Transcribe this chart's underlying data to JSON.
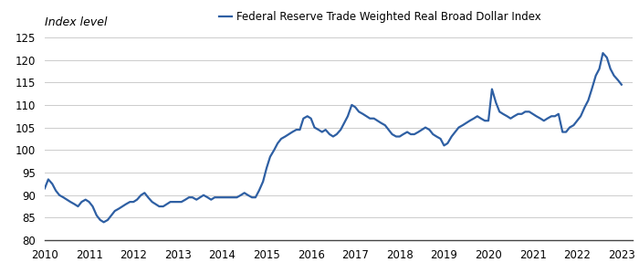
{
  "title": "Federal Reserve Trade Weighted Real Broad Dollar Index",
  "ylabel": "Index level",
  "line_color": "#2e5fa3",
  "line_width": 1.6,
  "background_color": "#ffffff",
  "ylim": [
    80,
    126
  ],
  "yticks": [
    80,
    85,
    90,
    95,
    100,
    105,
    110,
    115,
    120,
    125
  ],
  "xtick_labels": [
    "2010",
    "2011",
    "2012",
    "2013",
    "2014",
    "2015",
    "2016",
    "2017",
    "2018",
    "2019",
    "2020",
    "2021",
    "2022",
    "2023"
  ],
  "data": {
    "dates": [
      2010.0,
      2010.08,
      2010.17,
      2010.25,
      2010.33,
      2010.42,
      2010.5,
      2010.58,
      2010.67,
      2010.75,
      2010.83,
      2010.92,
      2011.0,
      2011.08,
      2011.17,
      2011.25,
      2011.33,
      2011.42,
      2011.5,
      2011.58,
      2011.67,
      2011.75,
      2011.83,
      2011.92,
      2012.0,
      2012.08,
      2012.17,
      2012.25,
      2012.33,
      2012.42,
      2012.5,
      2012.58,
      2012.67,
      2012.75,
      2012.83,
      2012.92,
      2013.0,
      2013.08,
      2013.17,
      2013.25,
      2013.33,
      2013.42,
      2013.5,
      2013.58,
      2013.67,
      2013.75,
      2013.83,
      2013.92,
      2014.0,
      2014.08,
      2014.17,
      2014.25,
      2014.33,
      2014.42,
      2014.5,
      2014.58,
      2014.67,
      2014.75,
      2014.83,
      2014.92,
      2015.0,
      2015.08,
      2015.17,
      2015.25,
      2015.33,
      2015.42,
      2015.5,
      2015.58,
      2015.67,
      2015.75,
      2015.83,
      2015.92,
      2016.0,
      2016.08,
      2016.17,
      2016.25,
      2016.33,
      2016.42,
      2016.5,
      2016.58,
      2016.67,
      2016.75,
      2016.83,
      2016.92,
      2017.0,
      2017.08,
      2017.17,
      2017.25,
      2017.33,
      2017.42,
      2017.5,
      2017.58,
      2017.67,
      2017.75,
      2017.83,
      2017.92,
      2018.0,
      2018.08,
      2018.17,
      2018.25,
      2018.33,
      2018.42,
      2018.5,
      2018.58,
      2018.67,
      2018.75,
      2018.83,
      2018.92,
      2019.0,
      2019.08,
      2019.17,
      2019.25,
      2019.33,
      2019.42,
      2019.5,
      2019.58,
      2019.67,
      2019.75,
      2019.83,
      2019.92,
      2020.0,
      2020.08,
      2020.17,
      2020.25,
      2020.33,
      2020.42,
      2020.5,
      2020.58,
      2020.67,
      2020.75,
      2020.83,
      2020.92,
      2021.0,
      2021.08,
      2021.17,
      2021.25,
      2021.33,
      2021.42,
      2021.5,
      2021.58,
      2021.67,
      2021.75,
      2021.83,
      2021.92,
      2022.0,
      2022.08,
      2022.17,
      2022.25,
      2022.33,
      2022.42,
      2022.5,
      2022.58,
      2022.67,
      2022.75,
      2022.83,
      2022.92,
      2023.0
    ],
    "values": [
      91.5,
      93.5,
      92.5,
      91.0,
      90.0,
      89.5,
      89.0,
      88.5,
      88.0,
      87.5,
      88.5,
      89.0,
      88.5,
      87.5,
      85.5,
      84.5,
      84.0,
      84.5,
      85.5,
      86.5,
      87.0,
      87.5,
      88.0,
      88.5,
      88.5,
      89.0,
      90.0,
      90.5,
      89.5,
      88.5,
      88.0,
      87.5,
      87.5,
      88.0,
      88.5,
      88.5,
      88.5,
      88.5,
      89.0,
      89.5,
      89.5,
      89.0,
      89.5,
      90.0,
      89.5,
      89.0,
      89.5,
      89.5,
      89.5,
      89.5,
      89.5,
      89.5,
      89.5,
      90.0,
      90.5,
      90.0,
      89.5,
      89.5,
      91.0,
      93.0,
      96.0,
      98.5,
      100.0,
      101.5,
      102.5,
      103.0,
      103.5,
      104.0,
      104.5,
      104.5,
      107.0,
      107.5,
      107.0,
      105.0,
      104.5,
      104.0,
      104.5,
      103.5,
      103.0,
      103.5,
      104.5,
      106.0,
      107.5,
      110.0,
      109.5,
      108.5,
      108.0,
      107.5,
      107.0,
      107.0,
      106.5,
      106.0,
      105.5,
      104.5,
      103.5,
      103.0,
      103.0,
      103.5,
      104.0,
      103.5,
      103.5,
      104.0,
      104.5,
      105.0,
      104.5,
      103.5,
      103.0,
      102.5,
      101.0,
      101.5,
      103.0,
      104.0,
      105.0,
      105.5,
      106.0,
      106.5,
      107.0,
      107.5,
      107.0,
      106.5,
      106.5,
      113.5,
      110.5,
      108.5,
      108.0,
      107.5,
      107.0,
      107.5,
      108.0,
      108.0,
      108.5,
      108.5,
      108.0,
      107.5,
      107.0,
      106.5,
      107.0,
      107.5,
      107.5,
      108.0,
      104.0,
      104.0,
      105.0,
      105.5,
      106.5,
      107.5,
      109.5,
      111.0,
      113.5,
      116.5,
      118.0,
      121.5,
      120.5,
      118.0,
      116.5,
      115.5,
      114.5
    ]
  }
}
